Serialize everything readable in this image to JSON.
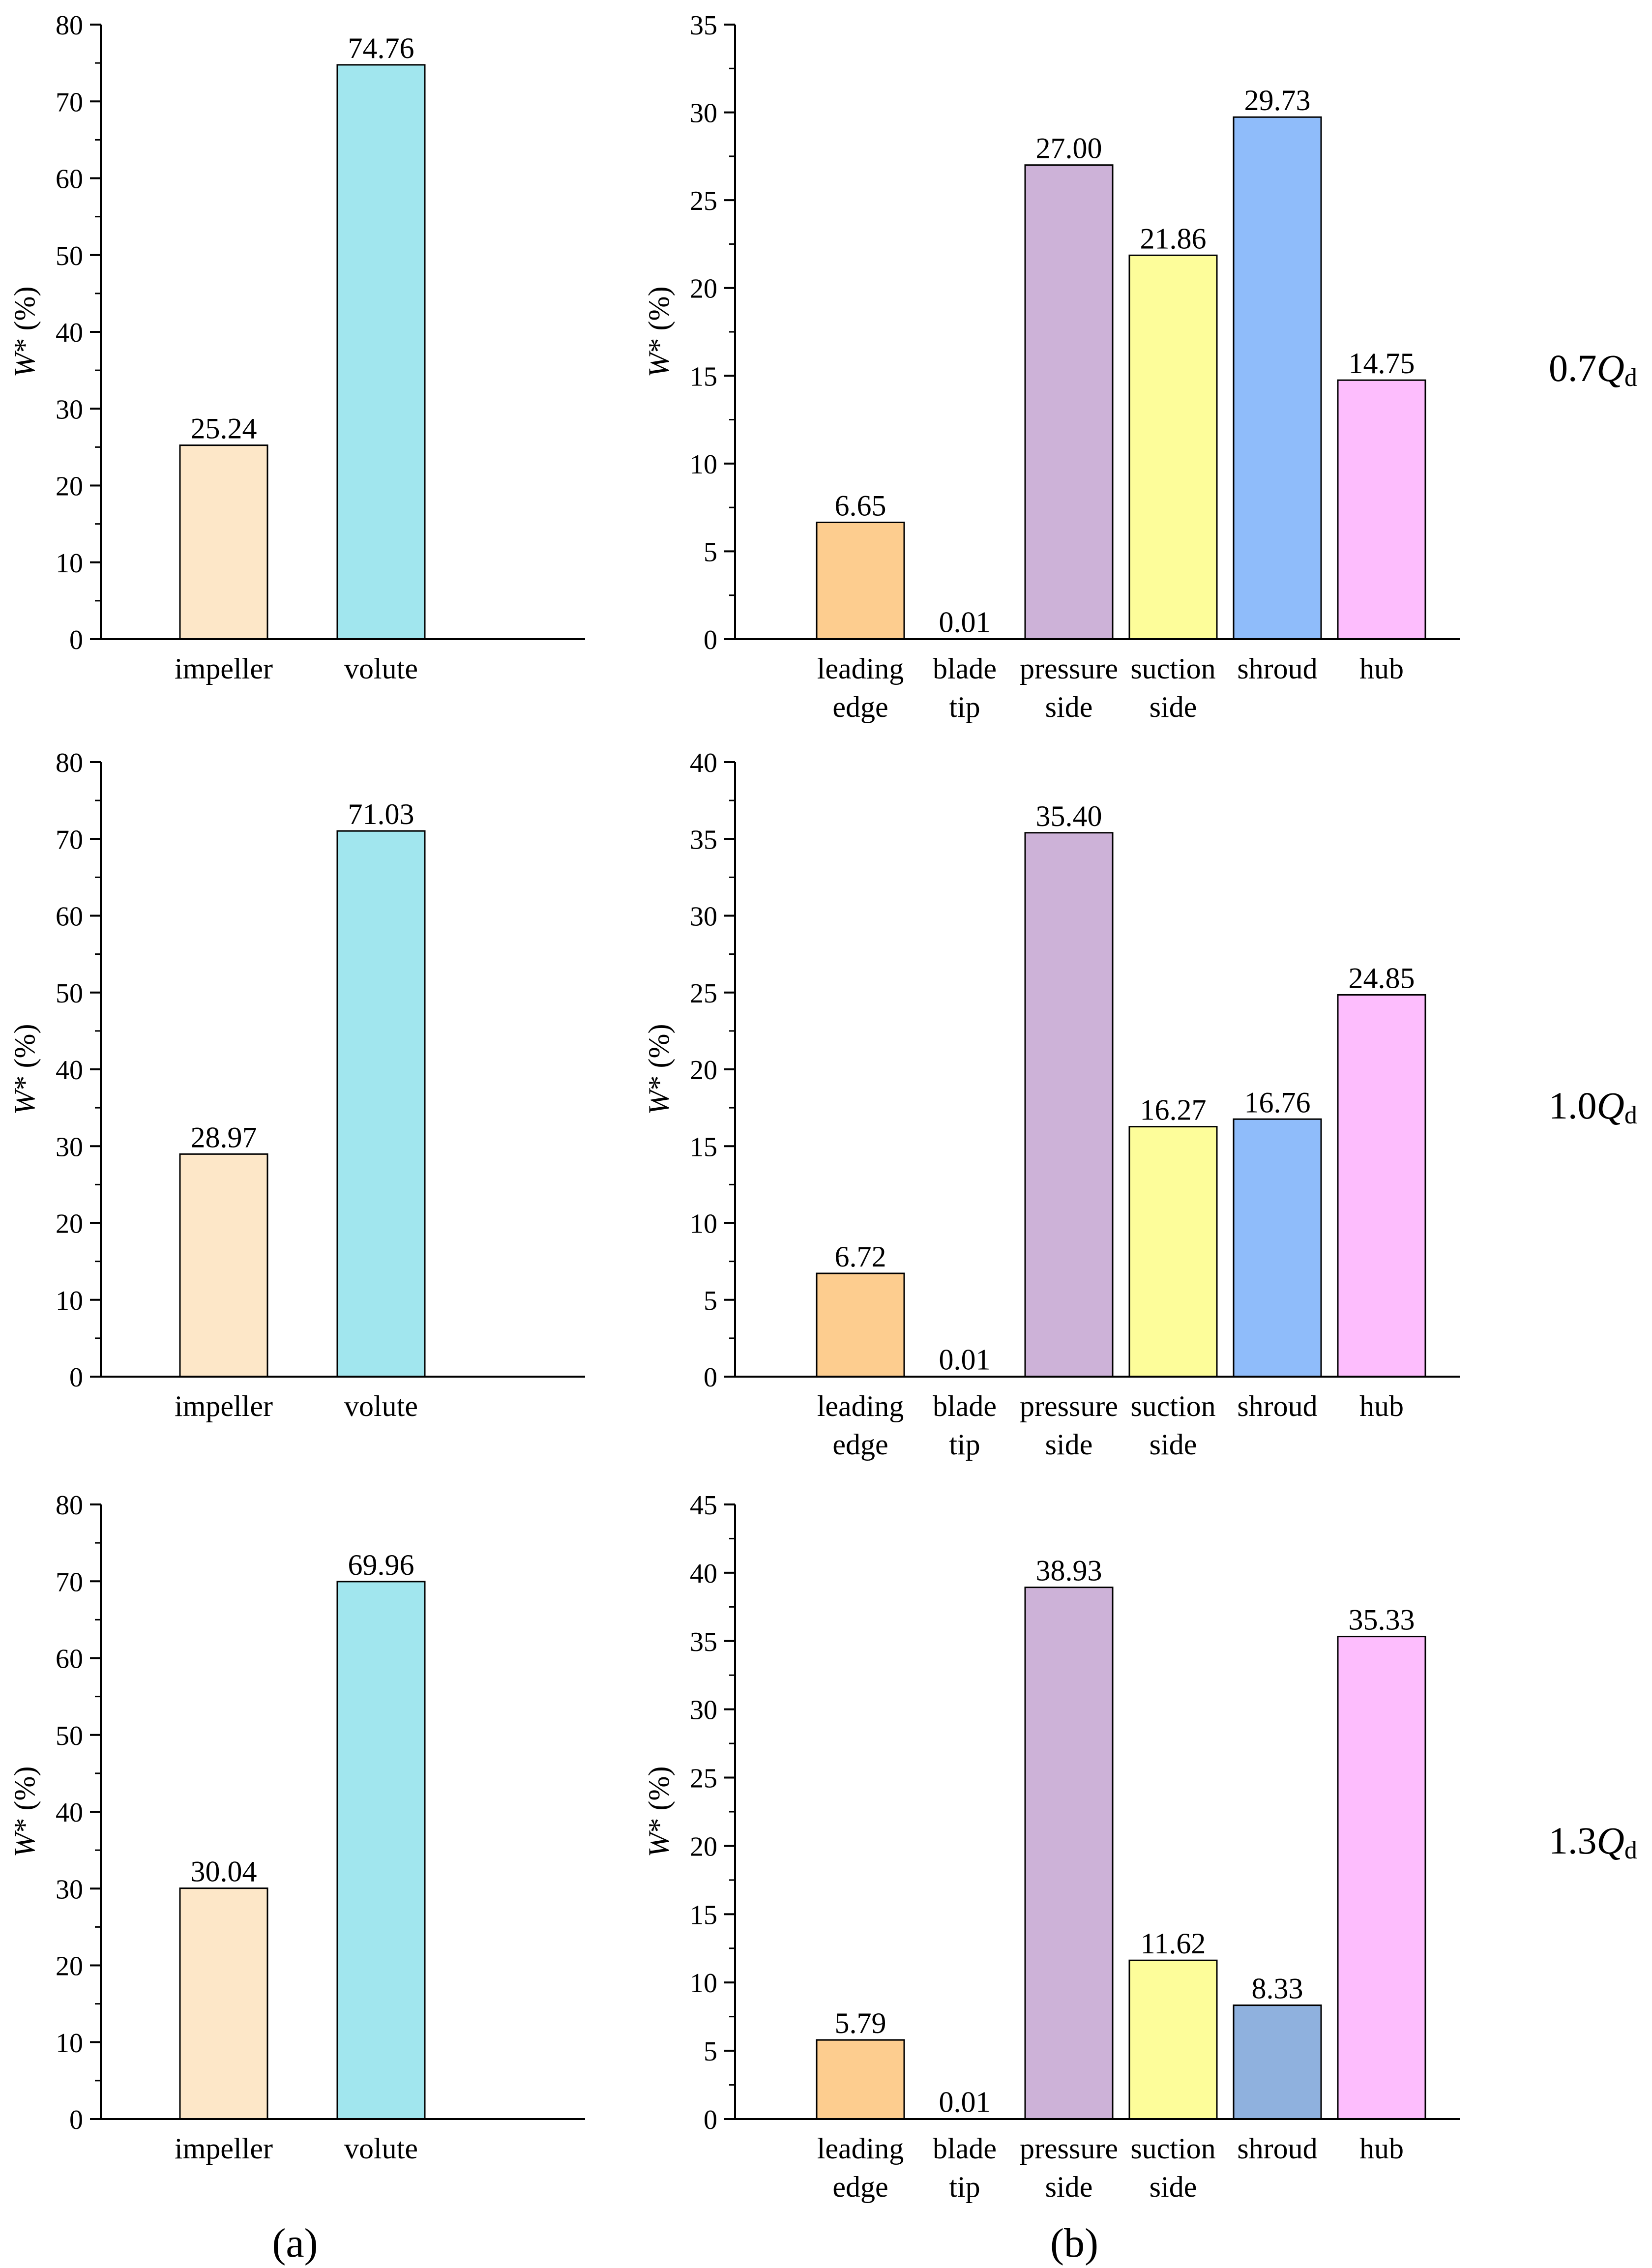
{
  "figure": {
    "panel_labels": [
      "(a)",
      "(b)"
    ],
    "row_labels": [
      {
        "prefix": "0.7",
        "var": "Q",
        "sub": "d"
      },
      {
        "prefix": "1.0",
        "var": "Q",
        "sub": "d"
      },
      {
        "prefix": "1.3",
        "var": "Q",
        "sub": "d"
      }
    ]
  },
  "colors": {
    "impeller": "#fde7c8",
    "volute": "#a1e6ee",
    "leading edge": "#fdcd8f",
    "blade tip": "#cccccc",
    "pressure side": "#cdb2d8",
    "suction side": "#fdfd9a",
    "shroud": "#8fbcfa",
    "shroud_1_3": "#8fb1de",
    "hub": "#fdbdfd"
  },
  "chart_data": [
    {
      "type": "bar",
      "panel": "a",
      "condition": "0.7Qd",
      "title": "",
      "xlabel": "",
      "ylabel": "W* (%)",
      "ylim": [
        0,
        80
      ],
      "ytick_step": 10,
      "categories": [
        [
          "impeller"
        ],
        [
          "volute"
        ]
      ],
      "values": [
        25.24,
        74.76
      ],
      "labels": [
        "25.24",
        "74.76"
      ]
    },
    {
      "type": "bar",
      "panel": "b",
      "condition": "0.7Qd",
      "title": "",
      "xlabel": "",
      "ylabel": "W* (%)",
      "ylim": [
        0,
        35
      ],
      "ytick_step": 5,
      "categories": [
        [
          "leading",
          "edge"
        ],
        [
          "blade",
          "tip"
        ],
        [
          "pressure",
          "side"
        ],
        [
          "suction",
          "side"
        ],
        [
          "shroud"
        ],
        [
          "hub"
        ]
      ],
      "values": [
        6.65,
        0.01,
        27.0,
        21.86,
        29.73,
        14.75
      ],
      "labels": [
        "6.65",
        "0.01",
        "27.00",
        "21.86",
        "29.73",
        "14.75"
      ]
    },
    {
      "type": "bar",
      "panel": "a",
      "condition": "1.0Qd",
      "title": "",
      "xlabel": "",
      "ylabel": "W* (%)",
      "ylim": [
        0,
        80
      ],
      "ytick_step": 10,
      "categories": [
        [
          "impeller"
        ],
        [
          "volute"
        ]
      ],
      "values": [
        28.97,
        71.03
      ],
      "labels": [
        "28.97",
        "71.03"
      ]
    },
    {
      "type": "bar",
      "panel": "b",
      "condition": "1.0Qd",
      "title": "",
      "xlabel": "",
      "ylabel": "W* (%)",
      "ylim": [
        0,
        40
      ],
      "ytick_step": 5,
      "categories": [
        [
          "leading",
          "edge"
        ],
        [
          "blade",
          "tip"
        ],
        [
          "pressure",
          "side"
        ],
        [
          "suction",
          "side"
        ],
        [
          "shroud"
        ],
        [
          "hub"
        ]
      ],
      "values": [
        6.72,
        0.01,
        35.4,
        16.27,
        16.76,
        24.85
      ],
      "labels": [
        "6.72",
        "0.01",
        "35.40",
        "16.27",
        "16.76",
        "24.85"
      ]
    },
    {
      "type": "bar",
      "panel": "a",
      "condition": "1.3Qd",
      "title": "",
      "xlabel": "",
      "ylabel": "W* (%)",
      "ylim": [
        0,
        80
      ],
      "ytick_step": 10,
      "categories": [
        [
          "impeller"
        ],
        [
          "volute"
        ]
      ],
      "values": [
        30.04,
        69.96
      ],
      "labels": [
        "30.04",
        "69.96"
      ]
    },
    {
      "type": "bar",
      "panel": "b",
      "condition": "1.3Qd",
      "title": "",
      "xlabel": "",
      "ylabel": "W* (%)",
      "ylim": [
        0,
        45
      ],
      "ytick_step": 5,
      "categories": [
        [
          "leading",
          "edge"
        ],
        [
          "blade",
          "tip"
        ],
        [
          "pressure",
          "side"
        ],
        [
          "suction",
          "side"
        ],
        [
          "shroud"
        ],
        [
          "hub"
        ]
      ],
      "values": [
        5.79,
        0.01,
        38.93,
        11.62,
        8.33,
        35.33
      ],
      "labels": [
        "5.79",
        "0.01",
        "38.93",
        "11.62",
        "8.33",
        "35.33"
      ]
    }
  ]
}
